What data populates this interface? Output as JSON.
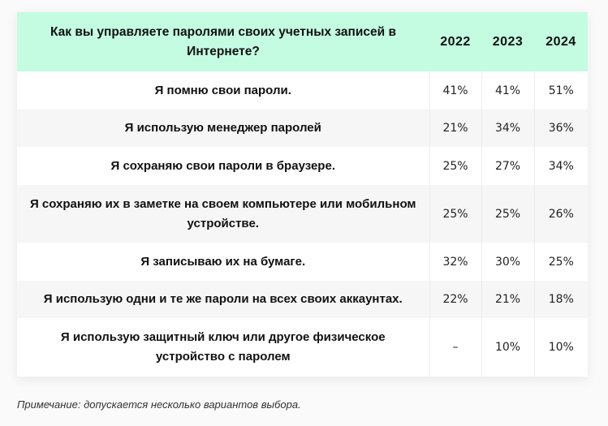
{
  "table": {
    "header": {
      "question": "Как вы управляете паролями своих учетных записей в Интернете?",
      "years": [
        "2022",
        "2023",
        "2024"
      ]
    },
    "rows": [
      {
        "label": "Я помню свои пароли.",
        "values": [
          "41%",
          "41%",
          "51%"
        ]
      },
      {
        "label": "Я использую менеджер паролей",
        "values": [
          "21%",
          "34%",
          "36%"
        ]
      },
      {
        "label": "Я сохраняю свои пароли в браузере.",
        "values": [
          "25%",
          "27%",
          "34%"
        ]
      },
      {
        "label": "Я сохраняю их в заметке на своем компьютере или мобильном устройстве.",
        "values": [
          "25%",
          "25%",
          "26%"
        ]
      },
      {
        "label": "Я записываю их на бумаге.",
        "values": [
          "32%",
          "30%",
          "25%"
        ]
      },
      {
        "label": "Я использую одни и те же пароли на всех своих аккаунтах.",
        "values": [
          "22%",
          "21%",
          "18%"
        ]
      },
      {
        "label": "Я использую защитный ключ или другое физическое устройство с паролем",
        "values": [
          "–",
          "10%",
          "10%"
        ]
      }
    ]
  },
  "note": "Примечание: допускается несколько вариантов выбора."
}
